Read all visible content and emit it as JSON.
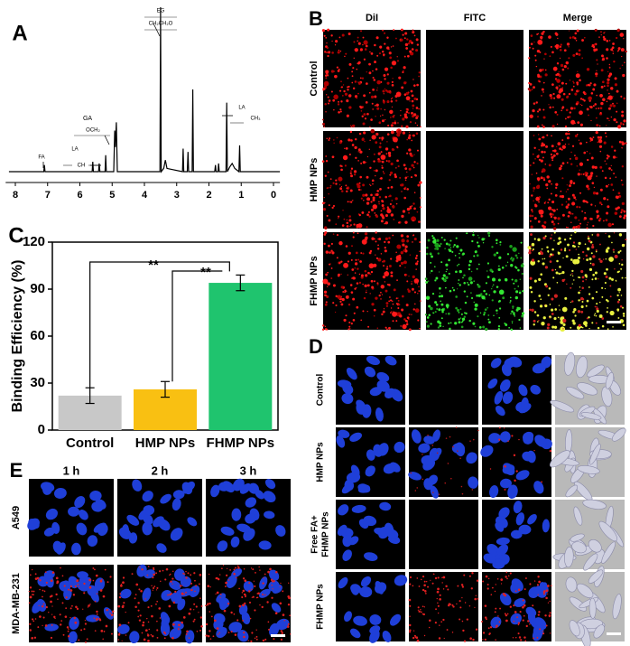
{
  "panels": {
    "A": {
      "label": "A"
    },
    "B": {
      "label": "B",
      "columns": [
        "DiI",
        "FITC",
        "Merge"
      ],
      "rows": [
        "Control",
        "HMP NPs",
        "FHMP NPs"
      ]
    },
    "C": {
      "label": "C",
      "significance": [
        "**",
        "**"
      ]
    },
    "D": {
      "label": "D",
      "rows": [
        [
          "Control"
        ],
        [
          "HMP NPs"
        ],
        [
          "Free FA+",
          "FHMP NPs"
        ],
        [
          "FHMP NPs"
        ]
      ]
    },
    "E": {
      "label": "E",
      "columns": [
        "1 h",
        "2 h",
        "3 h"
      ],
      "rows": [
        "A549",
        "MDA-MB-231"
      ]
    }
  },
  "chart_data": [
    {
      "type": "line",
      "color": "#000000",
      "x": [
        8.2,
        7.12,
        7.1,
        7.08,
        5.62,
        5.6,
        5.58,
        5.42,
        5.4,
        5.38,
        5.22,
        5.2,
        5.18,
        4.95,
        4.92,
        4.9,
        4.87,
        4.84,
        3.52,
        3.5,
        3.48,
        3.4,
        3.35,
        3.3,
        2.82,
        2.8,
        2.78,
        2.67,
        2.65,
        2.63,
        2.52,
        2.5,
        2.48,
        1.82,
        1.8,
        1.78,
        1.72,
        1.7,
        1.68,
        1.47,
        1.45,
        1.43,
        1.35,
        1.28,
        1.2,
        1.07,
        1.05,
        1.03,
        -0.2
      ],
      "values": [
        0,
        0,
        0.04,
        0,
        0,
        0.06,
        0,
        0,
        0.05,
        0,
        0,
        0.1,
        0,
        0,
        0.25,
        0.15,
        0.3,
        0,
        0,
        1.0,
        0,
        0.02,
        0.07,
        0.02,
        0,
        0.14,
        0,
        0,
        0.12,
        0,
        0,
        0.5,
        0,
        0,
        0.04,
        0,
        0,
        0.05,
        0,
        0,
        0.42,
        0,
        0.03,
        0.05,
        0.02,
        0,
        0.16,
        0,
        0
      ],
      "xlim": [
        8.3,
        -0.2
      ],
      "xticks": [
        8,
        7,
        6,
        5,
        4,
        3,
        2,
        1,
        0
      ],
      "annotations": [
        "EG",
        "CH₂CH₂O",
        "GA",
        "OCH₂",
        "LA",
        "CH",
        "FA",
        "LA",
        "CH₃"
      ]
    },
    {
      "type": "bar",
      "ylabel": "Binding Efficiency (%)",
      "categories": [
        "Control",
        "HMP NPs",
        "FHMP NPs"
      ],
      "values": [
        22,
        26,
        94
      ],
      "errors": [
        5,
        5,
        5
      ],
      "colors": [
        "#c8c8c8",
        "#f9c012",
        "#1fc46e"
      ],
      "ylim": [
        0,
        120
      ],
      "yticks": [
        0,
        30,
        60,
        90,
        120
      ]
    }
  ]
}
